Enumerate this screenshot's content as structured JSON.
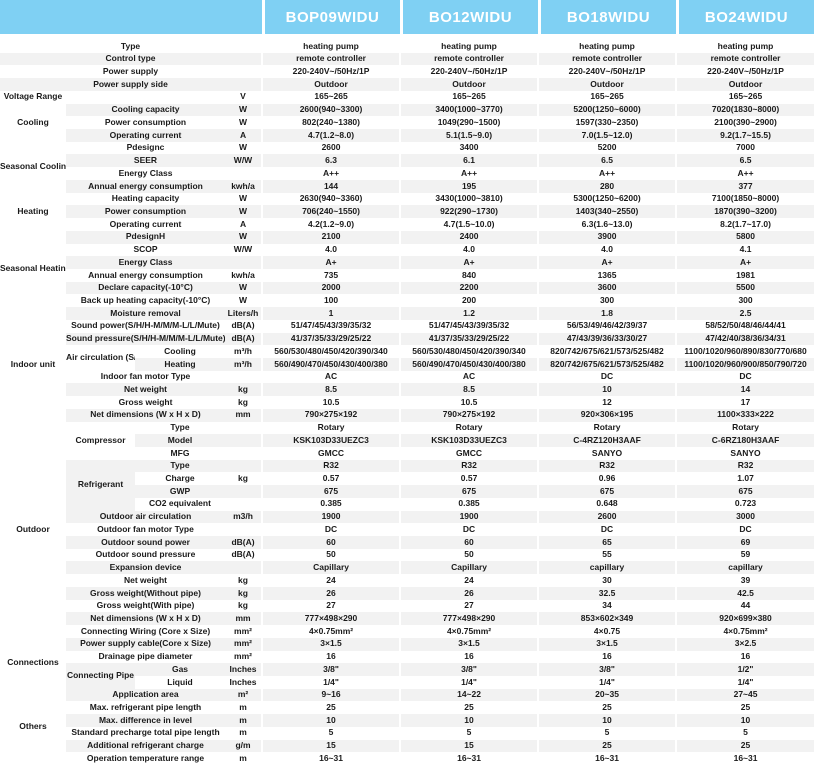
{
  "models": [
    "BOP09WIDU",
    "BO12WIDU",
    "BO18WIDU",
    "BO24WIDU"
  ],
  "colors": {
    "header_bg": "#7fd0f3",
    "stripe": "#f2f2f2",
    "text": "#1a1a1a"
  },
  "sections": [
    {
      "group": "",
      "rows": [
        {
          "attr": "Type",
          "unit": "",
          "values": [
            "heating pump",
            "heating pump",
            "heating pump",
            "heating pump"
          ]
        },
        {
          "attr": "Control type",
          "unit": "",
          "values": [
            "remote controller",
            "remote controller",
            "remote controller",
            "remote controller"
          ]
        },
        {
          "attr": "Power supply",
          "unit": "",
          "values": [
            "220-240V~/50Hz/1P",
            "220-240V~/50Hz/1P",
            "220-240V~/50Hz/1P",
            "220-240V~/50Hz/1P"
          ]
        },
        {
          "attr": "Power supply side",
          "unit": "",
          "values": [
            "Outdoor",
            "Outdoor",
            "Outdoor",
            "Outdoor"
          ]
        }
      ]
    },
    {
      "group": "Voltage Range",
      "rows": [
        {
          "attr": "",
          "unit": "V",
          "values": [
            "165~265",
            "165~265",
            "165~265",
            "165~265"
          ]
        }
      ]
    },
    {
      "group": "Cooling",
      "rows": [
        {
          "attr": "Cooling capacity",
          "unit": "W",
          "values": [
            "2600(940~3300)",
            "3400(1000~3770)",
            "5200(1250~6000)",
            "7020(1830~8000)"
          ]
        },
        {
          "attr": "Power consumption",
          "unit": "W",
          "values": [
            "802(240~1380)",
            "1049(290~1500)",
            "1597(330~2350)",
            "2100(390~2900)"
          ]
        },
        {
          "attr": "Operating current",
          "unit": "A",
          "values": [
            "4.7(1.2~8.0)",
            "5.1(1.5~9.0)",
            "7.0(1.5~12.0)",
            "9.2(1.7~15.5)"
          ]
        }
      ]
    },
    {
      "group": "Seasonal Coolin",
      "rows": [
        {
          "attr": "Pdesignc",
          "unit": "W",
          "values": [
            "2600",
            "3400",
            "5200",
            "7000"
          ]
        },
        {
          "attr": "SEER",
          "unit": "W/W",
          "values": [
            "6.3",
            "6.1",
            "6.5",
            "6.5"
          ]
        },
        {
          "attr": "Energy Class",
          "unit": "",
          "values": [
            "A++",
            "A++",
            "A++",
            "A++"
          ]
        },
        {
          "attr": "Annual energy consumption",
          "unit": "kwh/a",
          "values": [
            "144",
            "195",
            "280",
            "377"
          ]
        }
      ]
    },
    {
      "group": "Heating",
      "rows": [
        {
          "attr": "Heating capacity",
          "unit": "W",
          "values": [
            "2630(940~3360)",
            "3430(1000~3810)",
            "5300(1250~6200)",
            "7100(1850~8000)"
          ]
        },
        {
          "attr": "Power consumption",
          "unit": "W",
          "values": [
            "706(240~1550)",
            "922(290~1730)",
            "1403(340~2550)",
            "1870(390~3200)"
          ]
        },
        {
          "attr": "Operating current",
          "unit": "A",
          "values": [
            "4.2(1.2~9.0)",
            "4.7(1.5~10.0)",
            "6.3(1.6~13.0)",
            "8.2(1.7~17.0)"
          ]
        }
      ]
    },
    {
      "group": "Seasonal\nHeating\n(Average)",
      "rows": [
        {
          "attr": "PdesignH",
          "unit": "W",
          "values": [
            "2100",
            "2400",
            "3900",
            "5800"
          ]
        },
        {
          "attr": "SCOP",
          "unit": "W/W",
          "values": [
            "4.0",
            "4.0",
            "4.0",
            "4.1"
          ]
        },
        {
          "attr": "Energy Class",
          "unit": "",
          "values": [
            "A+",
            "A+",
            "A+",
            "A+"
          ]
        },
        {
          "attr": "Annual energy consumption",
          "unit": "kwh/a",
          "values": [
            "735",
            "840",
            "1365",
            "1981"
          ]
        },
        {
          "attr": "Declare capacity(-10°C)",
          "unit": "W",
          "values": [
            "2000",
            "2200",
            "3600",
            "5500"
          ]
        },
        {
          "attr": "Back up heating capacity(-10°C)",
          "unit": "W",
          "values": [
            "100",
            "200",
            "300",
            "300"
          ]
        }
      ]
    },
    {
      "group": "Indoor unit",
      "rows": [
        {
          "attr": "Moisture removal",
          "unit": "Liters/h",
          "values": [
            "1",
            "1.2",
            "1.8",
            "2.5"
          ]
        },
        {
          "attr": "Sound power(S/H/H-M/M/M-L/L/Mute)",
          "unit": "dB(A)",
          "values": [
            "51/47/45/43/39/35/32",
            "51/47/45/43/39/35/32",
            "56/53/49/46/42/39/37",
            "58/52/50/48/46/44/41"
          ]
        },
        {
          "attr": "Sound\npressure(S/H/H-M/M/M-L/L/Mute)",
          "unit": "dB(A)",
          "values": [
            "41/37/35/33/29/25/22",
            "41/37/35/33/29/25/22",
            "47/43/39/36/33/30/27",
            "47/42/40/38/36/34/31"
          ]
        },
        {
          "attr": "Air circulation\n(S/H/H-M/M/M\n-L/L/Mute)",
          "attrRows": 2,
          "sub": "Cooling",
          "unit": "m³/h",
          "values": [
            "560/530/480/450/420/390/340",
            "560/530/480/450/420/390/340",
            "820/742/675/621/573/525/482",
            "1100/1020/960/890/830/770/680"
          ]
        },
        {
          "sub": "Heating",
          "unit": "m³/h",
          "values": [
            "560/490/470/450/430/400/380",
            "560/490/470/450/430/400/380",
            "820/742/675/621/573/525/482",
            "1100/1020/960/900/850/790/720"
          ]
        },
        {
          "attr": "Indoor fan motor Type",
          "unit": "",
          "values": [
            "AC",
            "AC",
            "DC",
            "DC"
          ]
        },
        {
          "attr": "Net weight",
          "unit": "kg",
          "values": [
            "8.5",
            "8.5",
            "10",
            "14"
          ]
        },
        {
          "attr": "Gross weight",
          "unit": "kg",
          "values": [
            "10.5",
            "10.5",
            "12",
            "17"
          ]
        },
        {
          "attr": "Net dimensions (W x H x D)",
          "unit": "mm",
          "values": [
            "790×275×192",
            "790×275×192",
            "920×306×195",
            "1100×333×222"
          ]
        }
      ]
    },
    {
      "group": "Outdoor",
      "rows": [
        {
          "attr": "Compressor",
          "attrRows": 3,
          "sub": "Type",
          "unit": "",
          "values": [
            "Rotary",
            "Rotary",
            "Rotary",
            "Rotary"
          ]
        },
        {
          "sub": "Model",
          "unit": "",
          "values": [
            "KSK103D33UEZC3",
            "KSK103D33UEZC3",
            "C-4RZ120H3AAF",
            "C-6RZ180H3AAF"
          ]
        },
        {
          "sub": "MFG",
          "unit": "",
          "values": [
            "GMCC",
            "GMCC",
            "SANYO",
            "SANYO"
          ]
        },
        {
          "attr": "Refrigerant",
          "attrRows": 4,
          "sub": "Type",
          "unit": "",
          "values": [
            "R32",
            "R32",
            "R32",
            "R32"
          ]
        },
        {
          "sub": "Charge",
          "unit": "kg",
          "values": [
            "0.57",
            "0.57",
            "0.96",
            "1.07"
          ]
        },
        {
          "sub": "GWP",
          "unit": "",
          "values": [
            "675",
            "675",
            "675",
            "675"
          ]
        },
        {
          "sub": "CO2 equivalent",
          "unit": "",
          "values": [
            "0.385",
            "0.385",
            "0.648",
            "0.723"
          ]
        },
        {
          "attr": "Outdoor air circulation",
          "unit": "m3/h",
          "values": [
            "1900",
            "1900",
            "2600",
            "3000"
          ]
        },
        {
          "attr": "Outdoor fan motor Type",
          "unit": "",
          "values": [
            "DC",
            "DC",
            "DC",
            "DC"
          ]
        },
        {
          "attr": "Outdoor sound power",
          "unit": "dB(A)",
          "values": [
            "60",
            "60",
            "65",
            "69"
          ]
        },
        {
          "attr": "Outdoor sound pressure",
          "unit": "dB(A)",
          "values": [
            "50",
            "50",
            "55",
            "59"
          ]
        },
        {
          "attr": "Expansion device",
          "unit": "",
          "values": [
            "Capillary",
            "Capillary",
            "capillary",
            "capillary"
          ]
        },
        {
          "attr": "Net weight",
          "unit": "kg",
          "values": [
            "24",
            "24",
            "30",
            "39"
          ]
        },
        {
          "attr": "Gross weight(Without pipe)",
          "unit": "kg",
          "values": [
            "26",
            "26",
            "32.5",
            "42.5"
          ]
        },
        {
          "attr": "Gross weight(With pipe)",
          "unit": "kg",
          "values": [
            "27",
            "27",
            "34",
            "44"
          ]
        },
        {
          "attr": "Net dimensions (W x H x D)",
          "unit": "mm",
          "values": [
            "777×498×290",
            "777×498×290",
            "853×602×349",
            "920×699×380"
          ]
        },
        {
          "attr": "Connecting Wiring (Core x Size)",
          "unit": "mm²",
          "values": [
            "4×0.75mm²",
            "4×0.75mm²",
            "4×0.75",
            "4×0.75mm²"
          ]
        }
      ]
    },
    {
      "group": "Connections",
      "rows": [
        {
          "attr": "Power supply cable(Core x Size)",
          "unit": "mm²",
          "values": [
            "3×1.5",
            "3×1.5",
            "3×1.5",
            "3×2.5"
          ]
        },
        {
          "attr": "Drainage pipe diameter",
          "unit": "mm²",
          "values": [
            "16",
            "16",
            "16",
            "16"
          ]
        },
        {
          "attr": "Connecting\nPipe",
          "attrRows": 2,
          "sub": "Gas",
          "unit": "Inches",
          "values": [
            "3/8\"",
            "3/8\"",
            "3/8\"",
            "1/2\""
          ]
        },
        {
          "sub": "Liquid",
          "unit": "Inches",
          "values": [
            "1/4\"",
            "1/4\"",
            "1/4\"",
            "1/4\""
          ]
        }
      ]
    },
    {
      "group": "Others",
      "rows": [
        {
          "attr": "Application area",
          "unit": "m²",
          "values": [
            "9~16",
            "14~22",
            "20~35",
            "27~45"
          ]
        },
        {
          "attr": "Max. refrigerant pipe length",
          "unit": "m",
          "values": [
            "25",
            "25",
            "25",
            "25"
          ]
        },
        {
          "attr": "Max. difference in level",
          "unit": "m",
          "values": [
            "10",
            "10",
            "10",
            "10"
          ]
        },
        {
          "attr": "Standard precharge total pipe length",
          "unit": "m",
          "values": [
            "5",
            "5",
            "5",
            "5"
          ]
        },
        {
          "attr": "Additional refrigerant charge",
          "unit": "g/m",
          "values": [
            "15",
            "15",
            "25",
            "25"
          ]
        },
        {
          "attr": "Operation temperature range",
          "unit": "m",
          "values": [
            "16~31",
            "16~31",
            "16~31",
            "16~31"
          ]
        }
      ]
    }
  ]
}
